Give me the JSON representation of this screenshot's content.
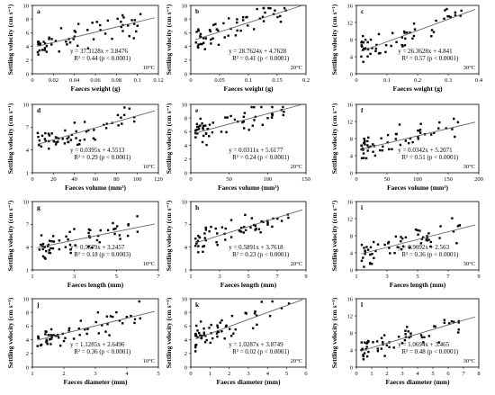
{
  "figure": {
    "y_label": "Settling velocity (cm s⁻¹)",
    "x_labels": [
      "Faeces weight (g)",
      "Faeces volume (mm³)",
      "Faeces length (mm)",
      "Faeces diameter (mm)"
    ]
  },
  "chart_data": [
    {
      "panel": "a",
      "type": "scatter",
      "temp": "10°C",
      "xlabel": "Faeces weight  (g)",
      "ylabel": "Settling velocity (cm s⁻¹)",
      "xlim": [
        0,
        0.12
      ],
      "ylim": [
        0,
        10
      ],
      "xticks": [
        "0",
        "0.02",
        "0.04",
        "0.06",
        "0.08",
        "0.1",
        "0.12"
      ],
      "yticks": [
        "0",
        "2",
        "4",
        "6",
        "8",
        "10"
      ],
      "slope": 37.3128,
      "intercept": 3.8476,
      "eq1": "y = 37.3128x + 3.8476",
      "eq2": "R² = 0.44 (p < 0.0001)"
    },
    {
      "panel": "b",
      "type": "scatter",
      "temp": "20°C",
      "xlabel": "Faeces weight (g)",
      "ylabel": "Settling velocity (cm s⁻¹)",
      "xlim": [
        0,
        0.2
      ],
      "ylim": [
        0,
        10
      ],
      "xticks": [
        "0",
        "0.05",
        "0.1",
        "0.15",
        "0.2"
      ],
      "yticks": [
        "0",
        "2",
        "4",
        "6",
        "8",
        "10"
      ],
      "slope": 28.7624,
      "intercept": 4.7628,
      "eq1": "y = 28.7624x + 4.7628",
      "eq2": "R² = 0.41 (p < 0.0001)"
    },
    {
      "panel": "c",
      "type": "scatter",
      "temp": "30°C",
      "xlabel": "Faeces weight (g)",
      "ylabel": "Settling velocity (cm s⁻¹)",
      "xlim": [
        0,
        0.4
      ],
      "ylim": [
        0,
        16
      ],
      "xticks": [
        "0",
        "0.1",
        "0.2",
        "0.3",
        "0.4"
      ],
      "yticks": [
        "0",
        "4",
        "8",
        "12",
        "16"
      ],
      "slope": 26.3628,
      "intercept": 4.841,
      "eq1": "y = 26.3628x + 4.841",
      "eq2": "R² = 0.57 (p < 0.0001)"
    },
    {
      "panel": "d",
      "type": "scatter",
      "temp": "10°C",
      "xlabel": "Faeces volume (mm³)",
      "ylabel": "Settling velocity (cm s⁻¹)",
      "xlim": [
        0,
        120
      ],
      "ylim": [
        1,
        10
      ],
      "xticks": [
        "0",
        "20",
        "40",
        "60",
        "80",
        "100",
        "120"
      ],
      "yticks": [
        "1",
        "4",
        "7",
        "10"
      ],
      "slope": 0.0395,
      "intercept": 4.5513,
      "eq1": "y = 0.0395x + 4.5513",
      "eq2": "R² = 0.29 (p < 0.0001)"
    },
    {
      "panel": "e",
      "type": "scatter",
      "temp": "20°C",
      "xlabel": "Faeces volume (mm³)",
      "ylabel": "Settling velocity (cm s⁻¹)",
      "xlim": [
        0,
        150
      ],
      "ylim": [
        0,
        10
      ],
      "xticks": [
        "0",
        "50",
        "100",
        "150"
      ],
      "yticks": [
        "0",
        "2",
        "4",
        "6",
        "8",
        "10"
      ],
      "slope": 0.0311,
      "intercept": 5.6177,
      "eq1": "y = 0.0311x + 5.6177",
      "eq2": "R² = 0.24 (p < 0.0001)"
    },
    {
      "panel": "f",
      "type": "scatter",
      "temp": "30°C",
      "xlabel": "Faeces volume (mm³)",
      "ylabel": "Settling velocity (cm s⁻¹)",
      "xlim": [
        0,
        200
      ],
      "ylim": [
        0,
        16
      ],
      "xticks": [
        "0",
        "50",
        "100",
        "150",
        "200"
      ],
      "yticks": [
        "0",
        "4",
        "8",
        "12",
        "16"
      ],
      "slope": 0.0342,
      "intercept": 5.2071,
      "eq1": "y = 0.0342x + 5.2071",
      "eq2": "R² = 0.51 (p < 0.0001)"
    },
    {
      "panel": "g",
      "type": "scatter",
      "temp": "10°C",
      "xlabel": "Faeces length (mm)",
      "ylabel": "Settling velocity (cm s⁻¹)",
      "xlim": [
        1,
        7
      ],
      "ylim": [
        1,
        10
      ],
      "xticks": [
        "1",
        "3",
        "5",
        "7"
      ],
      "yticks": [
        "1",
        "4",
        "7",
        "10"
      ],
      "slope": 0.5579,
      "intercept": 3.2457,
      "eq1": "y = 0.5579x + 3.2457",
      "eq2": "R² = 0.18 (p = 0.0003)"
    },
    {
      "panel": "h",
      "type": "scatter",
      "temp": "20°C",
      "xlabel": "Faeces length (mm)",
      "ylabel": "Settling velocity (cm s⁻¹)",
      "xlim": [
        1,
        9
      ],
      "ylim": [
        1,
        10
      ],
      "xticks": [
        "1",
        "3",
        "5",
        "7",
        "9"
      ],
      "yticks": [
        "1",
        "4",
        "7",
        "10"
      ],
      "slope": 0.5891,
      "intercept": 3.7618,
      "eq1": "y = 0.5891x + 3.7618",
      "eq2": "R² = 0.23 (p < 0.0001)"
    },
    {
      "panel": "i",
      "type": "scatter",
      "temp": "30°C",
      "xlabel": "Faeces length (mm)",
      "ylabel": "Settling velocity (cm s⁻¹)",
      "xlim": [
        1,
        9
      ],
      "ylim": [
        0,
        16
      ],
      "xticks": [
        "1",
        "3",
        "5",
        "7",
        "9"
      ],
      "yticks": [
        "0",
        "4",
        "8",
        "12",
        "16"
      ],
      "slope": 0.9092,
      "intercept": 2.563,
      "eq1": "y = 0.9092x + 2.563",
      "eq2": "R² = 0.36 (p < 0.0001)"
    },
    {
      "panel": "j",
      "type": "scatter",
      "temp": "10°C",
      "xlabel": "Faeces diameter (mm)",
      "ylabel": "Settling velocity (cm s⁻¹)",
      "xlim": [
        1,
        5
      ],
      "ylim": [
        0,
        10
      ],
      "xticks": [
        "1",
        "2",
        "3",
        "4",
        "5"
      ],
      "yticks": [
        "0",
        "2",
        "4",
        "6",
        "8",
        "10"
      ],
      "slope": 1.1285,
      "intercept": 2.6496,
      "eq1": "y = 1.1285x + 2.6496",
      "eq2": "R² = 0.36 (p < 0.0001)"
    },
    {
      "panel": "k",
      "type": "scatter",
      "temp": "20°C",
      "xlabel": "Faeces diameter (mm)",
      "ylabel": "Settling velocity (cm s⁻¹)",
      "xlim": [
        0,
        6
      ],
      "ylim": [
        0,
        10
      ],
      "xticks": [
        "0",
        "1",
        "2",
        "3",
        "4",
        "5",
        "6"
      ],
      "yticks": [
        "0",
        "2",
        "4",
        "6",
        "8",
        "10"
      ],
      "slope": 1.0287,
      "intercept": 3.8749,
      "eq1": "y = 1.0287x + 3.8749",
      "eq2": "R² = 0.02 (p < 0.0001)"
    },
    {
      "panel": "l",
      "type": "scatter",
      "temp": "30°C",
      "xlabel": "Faeces diameter (mm)",
      "ylabel": "Settling velocity (cm s⁻¹)",
      "xlim": [
        0,
        8
      ],
      "ylim": [
        0,
        16
      ],
      "xticks": [
        "0",
        "1",
        "2",
        "3",
        "4",
        "5",
        "6",
        "7",
        "8"
      ],
      "yticks": [
        "0",
        "4",
        "8",
        "12",
        "16"
      ],
      "slope": 1.0694,
      "intercept": 3.465,
      "eq1": "y = 1.0694x + 3.465",
      "eq2": "R² = 0.48 (p < 0.0001)"
    }
  ]
}
